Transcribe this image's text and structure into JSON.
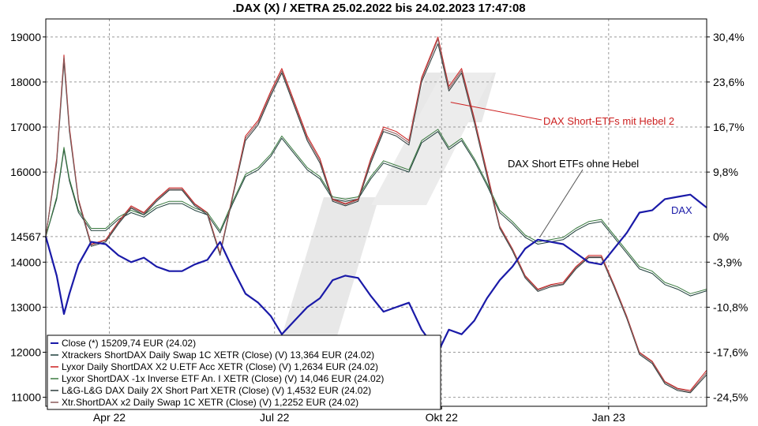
{
  "chart_data": {
    "type": "line",
    "title": ".DAX (X) / XETRA 25.02.2022 bis 24.02.2023 17:47:08",
    "xlabel": "",
    "ylabel": "",
    "x_range": [
      "2022-02-25",
      "2023-02-24"
    ],
    "ylim": [
      10800,
      19400
    ],
    "left_axis_ticks": [
      "19000",
      "18000",
      "17000",
      "16000",
      "14567",
      "14000",
      "13000",
      "12000",
      "11000"
    ],
    "left_axis_tick_values": [
      19000,
      18000,
      17000,
      16000,
      14567,
      14000,
      13000,
      12000,
      11000
    ],
    "right_axis_ticks": [
      "30,4%",
      "23,6%",
      "16,7%",
      "9,8%",
      "0%",
      "-3,9%",
      "-10,8%",
      "-17,6%",
      "-24,5%"
    ],
    "right_axis_tick_values": [
      19000,
      18000,
      17000,
      16000,
      14567,
      14000,
      13000,
      12000,
      11000
    ],
    "x_ticks": [
      {
        "label": "Apr 22",
        "date": "2022-04-01"
      },
      {
        "label": "Jul 22",
        "date": "2022-07-01"
      },
      {
        "label": "Okt 22",
        "date": "2022-10-01"
      },
      {
        "label": "Jan 23",
        "date": "2023-01-01"
      }
    ],
    "grid": true,
    "legend_position": "bottom-left",
    "series": [
      {
        "name": "Close (*) 15209,74 EUR (24.02)",
        "color": "#1a1aa8",
        "width": 2.2,
        "x": [
          "2022-02-25",
          "2022-03-03",
          "2022-03-07",
          "2022-03-10",
          "2022-03-15",
          "2022-03-22",
          "2022-03-30",
          "2022-04-06",
          "2022-04-13",
          "2022-04-20",
          "2022-04-27",
          "2022-05-04",
          "2022-05-11",
          "2022-05-18",
          "2022-05-25",
          "2022-06-01",
          "2022-06-08",
          "2022-06-15",
          "2022-06-22",
          "2022-06-29",
          "2022-07-05",
          "2022-07-12",
          "2022-07-19",
          "2022-07-26",
          "2022-08-02",
          "2022-08-09",
          "2022-08-16",
          "2022-08-23",
          "2022-08-30",
          "2022-09-06",
          "2022-09-13",
          "2022-09-20",
          "2022-09-29",
          "2022-10-05",
          "2022-10-12",
          "2022-10-19",
          "2022-10-26",
          "2022-11-02",
          "2022-11-09",
          "2022-11-16",
          "2022-11-23",
          "2022-11-30",
          "2022-12-07",
          "2022-12-14",
          "2022-12-21",
          "2022-12-28",
          "2023-01-04",
          "2023-01-11",
          "2023-01-18",
          "2023-01-25",
          "2023-02-01",
          "2023-02-08",
          "2023-02-15",
          "2023-02-24"
        ],
        "y": [
          14567,
          13700,
          12850,
          13300,
          13950,
          14450,
          14400,
          14150,
          14000,
          14100,
          13900,
          13800,
          13800,
          13950,
          14050,
          14450,
          13850,
          13300,
          13100,
          12800,
          12400,
          12700,
          13000,
          13200,
          13600,
          13700,
          13650,
          13250,
          12900,
          13000,
          13100,
          12500,
          12000,
          12500,
          12400,
          12700,
          13200,
          13600,
          13900,
          14300,
          14500,
          14450,
          14400,
          14200,
          14000,
          13950,
          14300,
          14650,
          15100,
          15150,
          15400,
          15450,
          15500,
          15210
        ]
      },
      {
        "name": "Xtrackers ShortDAX Daily Swap 1C XETR (Close) (V) 13,364 EUR (24.02)",
        "color": "#1e3f3a",
        "width": 1,
        "x": [
          "2022-02-25",
          "2022-03-03",
          "2022-03-07",
          "2022-03-10",
          "2022-03-15",
          "2022-03-22",
          "2022-03-30",
          "2022-04-06",
          "2022-04-13",
          "2022-04-20",
          "2022-04-27",
          "2022-05-04",
          "2022-05-11",
          "2022-05-18",
          "2022-05-25",
          "2022-06-01",
          "2022-06-08",
          "2022-06-15",
          "2022-06-22",
          "2022-06-29",
          "2022-07-05",
          "2022-07-12",
          "2022-07-19",
          "2022-07-26",
          "2022-08-02",
          "2022-08-09",
          "2022-08-16",
          "2022-08-23",
          "2022-08-30",
          "2022-09-06",
          "2022-09-13",
          "2022-09-20",
          "2022-09-29",
          "2022-10-05",
          "2022-10-12",
          "2022-10-19",
          "2022-10-26",
          "2022-11-02",
          "2022-11-09",
          "2022-11-16",
          "2022-11-23",
          "2022-11-30",
          "2022-12-07",
          "2022-12-14",
          "2022-12-21",
          "2022-12-28",
          "2023-01-04",
          "2023-01-11",
          "2023-01-18",
          "2023-01-25",
          "2023-02-01",
          "2023-02-08",
          "2023-02-15",
          "2023-02-24"
        ],
        "y": [
          14567,
          15400,
          16500,
          15800,
          15100,
          14700,
          14700,
          14950,
          15100,
          15000,
          15200,
          15300,
          15300,
          15150,
          15050,
          14650,
          15300,
          15900,
          16050,
          16350,
          16750,
          16400,
          16050,
          15850,
          15400,
          15350,
          15400,
          15850,
          16200,
          16100,
          16000,
          16650,
          16900,
          16500,
          16700,
          16250,
          15700,
          15100,
          14850,
          14550,
          14400,
          14450,
          14500,
          14700,
          14850,
          14900,
          14550,
          14200,
          13850,
          13750,
          13500,
          13400,
          13250,
          13364
        ]
      },
      {
        "name": "Lyxor Daily ShortDAX X2 U.ETF Acc XETR (Close) (V) 1,2634 EUR (24.02)",
        "color": "#cc1f1f",
        "width": 1,
        "x": [
          "2022-02-25",
          "2022-03-03",
          "2022-03-07",
          "2022-03-10",
          "2022-03-15",
          "2022-03-22",
          "2022-03-30",
          "2022-04-06",
          "2022-04-13",
          "2022-04-20",
          "2022-04-27",
          "2022-05-04",
          "2022-05-11",
          "2022-05-18",
          "2022-05-25",
          "2022-06-01",
          "2022-06-08",
          "2022-06-15",
          "2022-06-22",
          "2022-06-29",
          "2022-07-05",
          "2022-07-12",
          "2022-07-19",
          "2022-07-26",
          "2022-08-02",
          "2022-08-09",
          "2022-08-16",
          "2022-08-23",
          "2022-08-30",
          "2022-09-06",
          "2022-09-13",
          "2022-09-20",
          "2022-09-29",
          "2022-10-05",
          "2022-10-12",
          "2022-10-19",
          "2022-10-26",
          "2022-11-02",
          "2022-11-09",
          "2022-11-16",
          "2022-11-23",
          "2022-11-30",
          "2022-12-07",
          "2022-12-14",
          "2022-12-21",
          "2022-12-28",
          "2023-01-04",
          "2023-01-11",
          "2023-01-18",
          "2023-01-25",
          "2023-02-01",
          "2023-02-08",
          "2023-02-15",
          "2023-02-24"
        ],
        "y": [
          14567,
          16300,
          18600,
          17000,
          15400,
          14400,
          14500,
          14900,
          15250,
          15100,
          15400,
          15650,
          15650,
          15300,
          15100,
          14200,
          15500,
          16800,
          17150,
          17800,
          18300,
          17550,
          16800,
          16300,
          15400,
          15300,
          15400,
          16300,
          17000,
          16900,
          16700,
          18100,
          19000,
          17900,
          18300,
          17200,
          16000,
          14800,
          14300,
          13700,
          13400,
          13500,
          13550,
          13900,
          14150,
          14150,
          13500,
          12800,
          12000,
          11800,
          11350,
          11200,
          11150,
          11600
        ]
      },
      {
        "name": "Lyxor ShortDAX -1x Inverse ETF An. I XETR (Close) (V) 14,046 EUR (24.02)",
        "color": "#3a7a40",
        "width": 1,
        "x": [
          "2022-02-25",
          "2022-03-03",
          "2022-03-07",
          "2022-03-10",
          "2022-03-15",
          "2022-03-22",
          "2022-03-30",
          "2022-04-06",
          "2022-04-13",
          "2022-04-20",
          "2022-04-27",
          "2022-05-04",
          "2022-05-11",
          "2022-05-18",
          "2022-05-25",
          "2022-06-01",
          "2022-06-08",
          "2022-06-15",
          "2022-06-22",
          "2022-06-29",
          "2022-07-05",
          "2022-07-12",
          "2022-07-19",
          "2022-07-26",
          "2022-08-02",
          "2022-08-09",
          "2022-08-16",
          "2022-08-23",
          "2022-08-30",
          "2022-09-06",
          "2022-09-13",
          "2022-09-20",
          "2022-09-29",
          "2022-10-05",
          "2022-10-12",
          "2022-10-19",
          "2022-10-26",
          "2022-11-02",
          "2022-11-09",
          "2022-11-16",
          "2022-11-23",
          "2022-11-30",
          "2022-12-07",
          "2022-12-14",
          "2022-12-21",
          "2022-12-28",
          "2023-01-04",
          "2023-01-11",
          "2023-01-18",
          "2023-01-25",
          "2023-02-01",
          "2023-02-08",
          "2023-02-15",
          "2023-02-24"
        ],
        "y": [
          14567,
          15450,
          16550,
          15850,
          15150,
          14750,
          14750,
          15000,
          15150,
          15050,
          15250,
          15350,
          15350,
          15200,
          15100,
          14700,
          15350,
          15950,
          16100,
          16400,
          16800,
          16450,
          16100,
          15900,
          15450,
          15400,
          15450,
          15900,
          16250,
          16150,
          16050,
          16700,
          16950,
          16550,
          16750,
          16300,
          15750,
          15150,
          14900,
          14600,
          14450,
          14500,
          14550,
          14750,
          14900,
          14950,
          14600,
          14250,
          13900,
          13800,
          13550,
          13450,
          13300,
          13400
        ]
      },
      {
        "name": "L&G-L&G DAX Daily 2X Short Part XETR (Close) (V) 1,4532 EUR (24.02)",
        "color": "#2b3a3a",
        "width": 1,
        "x": [
          "2022-02-25",
          "2022-03-03",
          "2022-03-07",
          "2022-03-10",
          "2022-03-15",
          "2022-03-22",
          "2022-03-30",
          "2022-04-06",
          "2022-04-13",
          "2022-04-20",
          "2022-04-27",
          "2022-05-04",
          "2022-05-11",
          "2022-05-18",
          "2022-05-25",
          "2022-06-01",
          "2022-06-08",
          "2022-06-15",
          "2022-06-22",
          "2022-06-29",
          "2022-07-05",
          "2022-07-12",
          "2022-07-19",
          "2022-07-26",
          "2022-08-02",
          "2022-08-09",
          "2022-08-16",
          "2022-08-23",
          "2022-08-30",
          "2022-09-06",
          "2022-09-13",
          "2022-09-20",
          "2022-09-29",
          "2022-10-05",
          "2022-10-12",
          "2022-10-19",
          "2022-10-26",
          "2022-11-02",
          "2022-11-09",
          "2022-11-16",
          "2022-11-23",
          "2022-11-30",
          "2022-12-07",
          "2022-12-14",
          "2022-12-21",
          "2022-12-28",
          "2023-01-04",
          "2023-01-11",
          "2023-01-18",
          "2023-01-25",
          "2023-02-01",
          "2023-02-08",
          "2023-02-15",
          "2023-02-24"
        ],
        "y": [
          14567,
          16200,
          18450,
          16900,
          15350,
          14350,
          14450,
          14850,
          15200,
          15050,
          15350,
          15600,
          15600,
          15250,
          15050,
          14150,
          15450,
          16700,
          17050,
          17700,
          18200,
          17450,
          16700,
          16200,
          15350,
          15250,
          15350,
          16200,
          16900,
          16800,
          16600,
          18000,
          18850,
          17800,
          18200,
          17100,
          15900,
          14750,
          14250,
          13650,
          13350,
          13450,
          13500,
          13850,
          14100,
          14100,
          13450,
          12750,
          11950,
          11750,
          11300,
          11150,
          11100,
          11500
        ]
      },
      {
        "name": "Xtr.ShortDAX x2 Daily Swap 1C XETR (Close) (V) 1,2252 EUR (24.02)",
        "color": "#8b5a5a",
        "width": 1,
        "x": [
          "2022-02-25",
          "2022-03-03",
          "2022-03-07",
          "2022-03-10",
          "2022-03-15",
          "2022-03-22",
          "2022-03-30",
          "2022-04-06",
          "2022-04-13",
          "2022-04-20",
          "2022-04-27",
          "2022-05-04",
          "2022-05-11",
          "2022-05-18",
          "2022-05-25",
          "2022-06-01",
          "2022-06-08",
          "2022-06-15",
          "2022-06-22",
          "2022-06-29",
          "2022-07-05",
          "2022-07-12",
          "2022-07-19",
          "2022-07-26",
          "2022-08-02",
          "2022-08-09",
          "2022-08-16",
          "2022-08-23",
          "2022-08-30",
          "2022-09-06",
          "2022-09-13",
          "2022-09-20",
          "2022-09-29",
          "2022-10-05",
          "2022-10-12",
          "2022-10-19",
          "2022-10-26",
          "2022-11-02",
          "2022-11-09",
          "2022-11-16",
          "2022-11-23",
          "2022-11-30",
          "2022-12-07",
          "2022-12-14",
          "2022-12-21",
          "2022-12-28",
          "2023-01-04",
          "2023-01-11",
          "2023-01-18",
          "2023-01-25",
          "2023-02-01",
          "2023-02-08",
          "2023-02-15",
          "2023-02-24"
        ],
        "y": [
          14567,
          16250,
          18550,
          16950,
          15380,
          14380,
          14480,
          14880,
          15220,
          15080,
          15380,
          15620,
          15620,
          15280,
          15080,
          14180,
          15480,
          16750,
          17100,
          17750,
          18250,
          17500,
          16750,
          16250,
          15380,
          15280,
          15380,
          16250,
          16950,
          16850,
          16650,
          18050,
          18950,
          17850,
          18250,
          17150,
          15950,
          14780,
          14280,
          13680,
          13380,
          13480,
          13520,
          13880,
          14120,
          14120,
          13480,
          12780,
          11980,
          11780,
          11330,
          11180,
          11120,
          11550
        ]
      }
    ],
    "annotations": [
      {
        "text": "DAX Short-ETFs mit Hebel 2",
        "color": "#cc1f1f",
        "points_to": {
          "x": "2022-10-06",
          "y": 17550
        }
      },
      {
        "text": "DAX Short ETFs ohne Hebel",
        "color": "#000000",
        "points_to": {
          "x": "2022-11-24",
          "y": 14550
        }
      },
      {
        "text": "DAX",
        "color": "#1a1aa8"
      }
    ]
  }
}
